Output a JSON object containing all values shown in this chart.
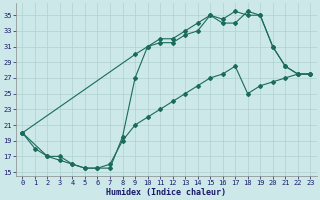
{
  "xlabel": "Humidex (Indice chaleur)",
  "bg_color": "#cce8e8",
  "grid_color": "#b0d0d0",
  "line_color": "#1a6b5a",
  "line1_x": [
    0,
    1,
    2,
    3,
    4,
    5,
    6,
    7,
    8,
    9,
    10,
    11,
    12,
    13,
    14,
    15,
    16,
    17,
    18,
    19,
    20,
    21,
    22,
    23
  ],
  "line1_y": [
    20,
    18,
    17,
    16.5,
    16,
    15.5,
    15.5,
    15.5,
    19.5,
    27,
    31,
    31.5,
    31.5,
    32.5,
    33,
    35,
    34,
    34,
    35.5,
    35,
    31,
    28.5,
    27.5,
    27.5
  ],
  "line2_x": [
    0,
    2,
    3,
    4,
    5,
    6,
    7,
    8,
    9,
    10,
    11,
    12,
    13,
    14,
    15,
    16,
    17,
    18,
    19,
    20,
    21,
    22,
    23
  ],
  "line2_y": [
    20,
    17,
    17,
    16,
    15.5,
    15.5,
    16,
    19,
    21,
    22,
    23,
    24,
    25,
    26,
    27,
    27.5,
    28.5,
    25,
    26,
    26.5,
    27,
    27.5,
    27.5
  ],
  "line3_x": [
    0,
    9,
    10,
    11,
    12,
    13,
    14,
    15,
    16,
    17,
    18,
    19,
    20,
    21,
    22,
    23
  ],
  "line3_y": [
    20,
    30,
    31,
    32,
    32,
    33,
    34,
    35,
    34.5,
    35.5,
    35,
    35,
    31,
    28.5,
    27.5,
    27.5
  ],
  "xlim": [
    -0.5,
    23.5
  ],
  "ylim": [
    14.5,
    36.5
  ],
  "yticks": [
    15,
    17,
    19,
    21,
    23,
    25,
    27,
    29,
    31,
    33,
    35
  ],
  "xticks": [
    0,
    1,
    2,
    3,
    4,
    5,
    6,
    7,
    8,
    9,
    10,
    11,
    12,
    13,
    14,
    15,
    16,
    17,
    18,
    19,
    20,
    21,
    22,
    23
  ],
  "xlabel_color": "#1a1a6a",
  "tick_color": "#1a1a6a",
  "tick_fontsize": 5.0,
  "xlabel_fontsize": 6.0,
  "linewidth": 0.8,
  "markersize": 2.0
}
